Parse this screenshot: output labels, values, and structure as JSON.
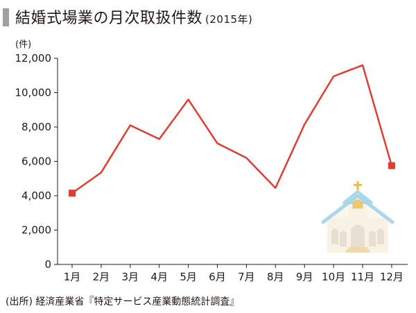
{
  "title": {
    "main": "結婚式場業の月次取扱件数",
    "sub": "(2015年)"
  },
  "source": "(出所) 経済産業省『特定サービス産業動態統計調査』",
  "chart_data": {
    "type": "line",
    "title": "結婚式場業の月次取扱件数",
    "subtitle": "(2015年)",
    "ylabel": "(件)",
    "xlabel": "",
    "ylim": [
      0,
      12000
    ],
    "y_ticks": [
      0,
      2000,
      4000,
      6000,
      8000,
      10000,
      12000
    ],
    "y_tick_labels": [
      "0",
      "2,000",
      "4,000",
      "6,000",
      "8,000",
      "10,000",
      "12,000"
    ],
    "categories": [
      "1月",
      "2月",
      "3月",
      "4月",
      "5月",
      "6月",
      "7月",
      "8月",
      "9月",
      "10月",
      "11月",
      "12月"
    ],
    "series": [
      {
        "values": [
          4150,
          5350,
          8100,
          7300,
          9600,
          7050,
          6200,
          4450,
          8150,
          10950,
          11600,
          5750
        ]
      }
    ],
    "grid": false,
    "legend": "none",
    "line_color": "#e03c31",
    "endpoint_markers": "square"
  },
  "decoration": {
    "icon": "chapel-icon"
  }
}
